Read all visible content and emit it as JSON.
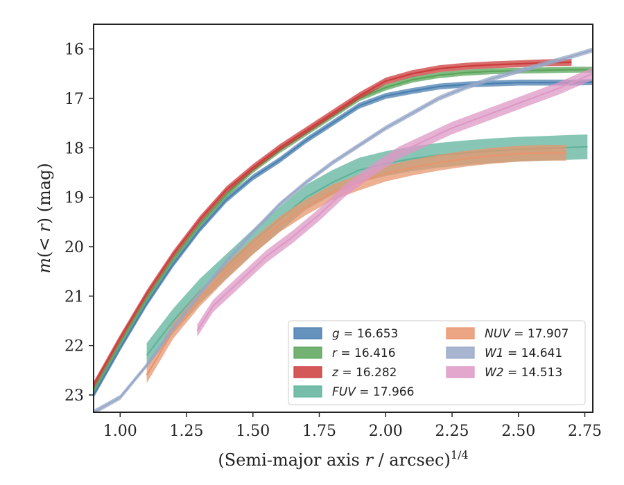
{
  "chart_data": {
    "type": "line",
    "title": "",
    "xlabel": "(Semi-major axis r / arcsec)^(1/4)",
    "xlabel_parts": {
      "main": "(Semi-major axis ",
      "var": "r",
      "rest": " / arcsec)",
      "sup": "1/4"
    },
    "ylabel": "m(< r) (mag)",
    "ylabel_parts": {
      "m": "m",
      "open": "(",
      "lt": "< ",
      "r": "r",
      "close": ")",
      "unit": " (mag)"
    },
    "xlim": [
      0.9,
      2.78
    ],
    "ylim": [
      15.5,
      23.35
    ],
    "y_inverted": true,
    "xticks": [
      1.0,
      1.25,
      1.5,
      1.75,
      2.0,
      2.25,
      2.5,
      2.75
    ],
    "xtick_labels": [
      "1.00",
      "1.25",
      "1.50",
      "1.75",
      "2.00",
      "2.25",
      "2.50",
      "2.75"
    ],
    "yticks": [
      16,
      17,
      18,
      19,
      20,
      21,
      22,
      23
    ],
    "ytick_labels": [
      "16",
      "17",
      "18",
      "19",
      "20",
      "21",
      "22",
      "23"
    ],
    "grid": false,
    "legend_placement": "lower-right",
    "series": [
      {
        "name": "g = 16.653",
        "var": "g",
        "value": "16.653",
        "color": "#4a7fb0",
        "band": 0.12,
        "x": [
          0.9,
          1.0,
          1.1,
          1.2,
          1.3,
          1.4,
          1.5,
          1.6,
          1.7,
          1.8,
          1.9,
          2.0,
          2.1,
          2.2,
          2.3,
          2.4,
          2.5,
          2.6,
          2.7,
          2.78
        ],
        "y": [
          23.0,
          22.05,
          21.15,
          20.35,
          19.65,
          19.05,
          18.6,
          18.25,
          17.85,
          17.5,
          17.15,
          16.95,
          16.85,
          16.76,
          16.72,
          16.7,
          16.68,
          16.68,
          16.68,
          16.67
        ]
      },
      {
        "name": "r = 16.416",
        "var": "r",
        "value": "16.416",
        "color": "#5aa55a",
        "band": 0.12,
        "x": [
          0.9,
          1.0,
          1.1,
          1.2,
          1.3,
          1.4,
          1.5,
          1.6,
          1.7,
          1.8,
          1.9,
          2.0,
          2.1,
          2.2,
          2.3,
          2.4,
          2.5,
          2.6,
          2.7,
          2.78
        ],
        "y": [
          22.9,
          21.95,
          21.05,
          20.25,
          19.55,
          18.95,
          18.45,
          18.05,
          17.7,
          17.35,
          17.0,
          16.78,
          16.62,
          16.53,
          16.48,
          16.45,
          16.44,
          16.43,
          16.42,
          16.42
        ]
      },
      {
        "name": "z = 16.282",
        "var": "z",
        "value": "16.282",
        "color": "#cc3b3b",
        "band": 0.14,
        "x": [
          0.9,
          1.0,
          1.1,
          1.2,
          1.3,
          1.4,
          1.5,
          1.6,
          1.7,
          1.8,
          1.9,
          2.0,
          2.1,
          2.2,
          2.3,
          2.4,
          2.5,
          2.6,
          2.7
        ],
        "y": [
          22.8,
          21.85,
          20.95,
          20.15,
          19.45,
          18.85,
          18.4,
          18.0,
          17.65,
          17.3,
          16.95,
          16.65,
          16.5,
          16.4,
          16.35,
          16.32,
          16.3,
          16.28,
          16.27
        ]
      },
      {
        "name": "FUV = 17.966",
        "var": "FUV",
        "value": "17.966",
        "color": "#5fb39b",
        "band": 0.5,
        "x": [
          1.1,
          1.2,
          1.3,
          1.4,
          1.5,
          1.6,
          1.7,
          1.8,
          1.9,
          2.0,
          2.1,
          2.2,
          2.3,
          2.4,
          2.5,
          2.6,
          2.7,
          2.76
        ],
        "y": [
          22.2,
          21.5,
          20.9,
          20.4,
          19.9,
          19.45,
          19.0,
          18.7,
          18.45,
          18.32,
          18.22,
          18.15,
          18.1,
          18.06,
          18.03,
          18.01,
          17.99,
          17.98
        ]
      },
      {
        "name": "NUV = 17.907",
        "var": "NUV",
        "value": "17.907",
        "color": "#e8956e",
        "band": 0.32,
        "x": [
          1.1,
          1.2,
          1.3,
          1.4,
          1.5,
          1.6,
          1.7,
          1.8,
          1.9,
          2.0,
          2.1,
          2.2,
          2.3,
          2.4,
          2.5,
          2.6,
          2.68
        ],
        "y": [
          22.6,
          21.7,
          21.05,
          20.5,
          20.0,
          19.55,
          19.2,
          18.9,
          18.7,
          18.52,
          18.4,
          18.3,
          18.22,
          18.16,
          18.12,
          18.1,
          18.1
        ]
      },
      {
        "name": "W1 = 14.641",
        "var": "W1",
        "value": "14.641",
        "color": "#98a8c8",
        "band": 0.1,
        "x": [
          0.9,
          1.0,
          1.1,
          1.2,
          1.3,
          1.4,
          1.5,
          1.6,
          1.7,
          1.8,
          1.9,
          2.0,
          2.1,
          2.2,
          2.3,
          2.4,
          2.5,
          2.6,
          2.7,
          2.78
        ],
        "y": [
          23.35,
          23.05,
          22.4,
          21.65,
          20.95,
          20.3,
          19.7,
          19.15,
          18.7,
          18.3,
          17.95,
          17.6,
          17.3,
          17.0,
          16.78,
          16.6,
          16.45,
          16.3,
          16.15,
          16.02
        ]
      },
      {
        "name": "W2 = 14.513",
        "var": "W2",
        "value": "14.513",
        "color": "#de98c6",
        "band": 0.25,
        "x": [
          1.29,
          1.35,
          1.45,
          1.55,
          1.65,
          1.75,
          1.85,
          1.95,
          2.05,
          2.15,
          2.25,
          2.35,
          2.45,
          2.55,
          2.65,
          2.78
        ],
        "y": [
          21.7,
          21.2,
          20.7,
          20.2,
          19.8,
          19.35,
          18.85,
          18.45,
          18.1,
          17.85,
          17.6,
          17.4,
          17.2,
          17.0,
          16.8,
          16.5
        ]
      }
    ]
  }
}
